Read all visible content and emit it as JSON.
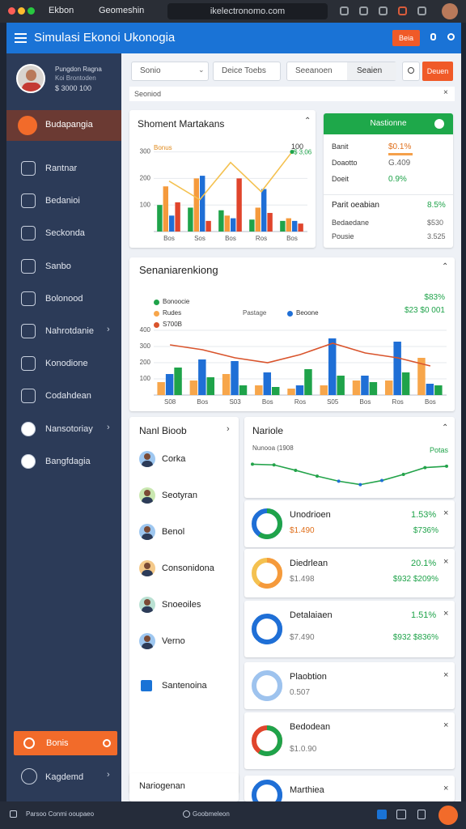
{
  "browser": {
    "tabs": [
      "Ekbon",
      "Geomeshin"
    ],
    "url": "ikelectronomo.com"
  },
  "header": {
    "title": "Simulasi Ekonoi Ukonogia",
    "button": "Beia"
  },
  "profile": {
    "name": "Pungdon Ragna",
    "role": "Koi Brontoden",
    "balance": "$ 3000 100"
  },
  "sidebar": {
    "active": "Budapangia",
    "items": [
      "Rantnar",
      "Bedanioi",
      "Seckonda",
      "Sanbo",
      "Bolonood",
      "Nahrotdanie",
      "Konodione",
      "Codahdean",
      "Nansotoriay",
      "Bangfdagia"
    ],
    "button": "Bonis",
    "footer_item": "Kagdemd"
  },
  "toolbar": {
    "search": "Sonio",
    "select": "Deice Toebs",
    "field_label": "Seeanoen",
    "field_value": "Seaien",
    "button": "Deuen",
    "breadcrumb": "Seoniod"
  },
  "market_chart": {
    "type": "bar",
    "title": "Shoment Martakans",
    "legend_label": "Bonus",
    "corner_label": "100",
    "line_label": "$ 3,06",
    "categories": [
      "Bos",
      "Sos",
      "Bos",
      "Ros",
      "Bos"
    ],
    "ylim": [
      0,
      320
    ],
    "yticks": [
      100,
      200,
      300
    ],
    "series": [
      {
        "color": "#1fa34a",
        "values": [
          100,
          90,
          80,
          45,
          40
        ]
      },
      {
        "color": "#f59a3c",
        "values": [
          170,
          200,
          60,
          90,
          50
        ]
      },
      {
        "color": "#1f6fd6",
        "values": [
          60,
          210,
          50,
          160,
          40
        ]
      },
      {
        "color": "#e0452c",
        "values": [
          110,
          40,
          200,
          70,
          30
        ]
      }
    ],
    "line": {
      "color": "#f4c150",
      "values": [
        190,
        120,
        260,
        150,
        300
      ]
    }
  },
  "summary_card": {
    "title": "Nastionne",
    "rows": [
      {
        "label": "Banit",
        "value": "$0.1%"
      },
      {
        "label": "Doaotto",
        "value": "G.409"
      },
      {
        "label": "Doeit",
        "value": "0.9%"
      }
    ],
    "section": {
      "label": "Parit oeabian",
      "value": "8.5%"
    },
    "section_rows": [
      {
        "label": "Bedaedane",
        "value": "$530"
      },
      {
        "label": "Pousie",
        "value": "3.525"
      }
    ]
  },
  "sales_chart": {
    "type": "bar",
    "title": "Senaniarenkiong",
    "note": "Pastage",
    "annotations": [
      "$83%",
      "$23 $0 001"
    ],
    "categories": [
      "S08",
      "Bos",
      "S03",
      "Bos",
      "Ros",
      "S05",
      "Bos",
      "Ros",
      "Bos"
    ],
    "ylim": [
      0,
      450
    ],
    "yticks": [
      100,
      200,
      300,
      400
    ],
    "series": [
      {
        "name": "Rudes",
        "color": "#f7a64b",
        "values": [
          80,
          90,
          130,
          60,
          40,
          60,
          90,
          90,
          230
        ]
      },
      {
        "name": "Beoone",
        "color": "#1f6fd6",
        "values": [
          130,
          220,
          210,
          140,
          60,
          350,
          120,
          330,
          70
        ]
      },
      {
        "name": "Bonoocie",
        "color": "#1fa34a",
        "values": [
          170,
          110,
          60,
          50,
          160,
          120,
          80,
          140,
          60
        ]
      }
    ],
    "line": {
      "name": "S700B",
      "color": "#d9542c",
      "values": [
        310,
        280,
        230,
        200,
        250,
        320,
        260,
        230,
        180
      ]
    }
  },
  "team": {
    "title": "Nanl Bioob",
    "members": [
      "Corka",
      "Seotyran",
      "Benol",
      "Consonidona",
      "Snoeoiles",
      "Verno",
      "Santenoina"
    ]
  },
  "trend": {
    "type": "line",
    "title": "Nariole",
    "subtitle": "Nunooa (1908",
    "label": "Potas",
    "color": "#23a34a",
    "ylim": [
      0,
      1
    ],
    "values": [
      0.8,
      0.78,
      0.62,
      0.45,
      0.3,
      0.2,
      0.32,
      0.5,
      0.7,
      0.74
    ]
  },
  "items": [
    {
      "title": "Unodrioen",
      "value": "1.53%",
      "detail": "$1.490",
      "change": "$736%"
    },
    {
      "title": "Diedrlean",
      "value": "20.1%",
      "detail": "$1.498",
      "change": "$932 $209%"
    },
    {
      "title": "Detalaiaen",
      "value": "1.51%",
      "detail": "$7.490",
      "change": "$932 $836%"
    },
    {
      "title": "Plaobtion",
      "detail": "0.507"
    },
    {
      "title": "Bedodean",
      "detail": "$1.0.90"
    },
    {
      "title": "Marthiea"
    }
  ],
  "bottom_card": {
    "title": "Nariogenan"
  },
  "footer": {
    "left": "Parsoo Conmi ooupaeo",
    "center": "Goobmeleon"
  }
}
